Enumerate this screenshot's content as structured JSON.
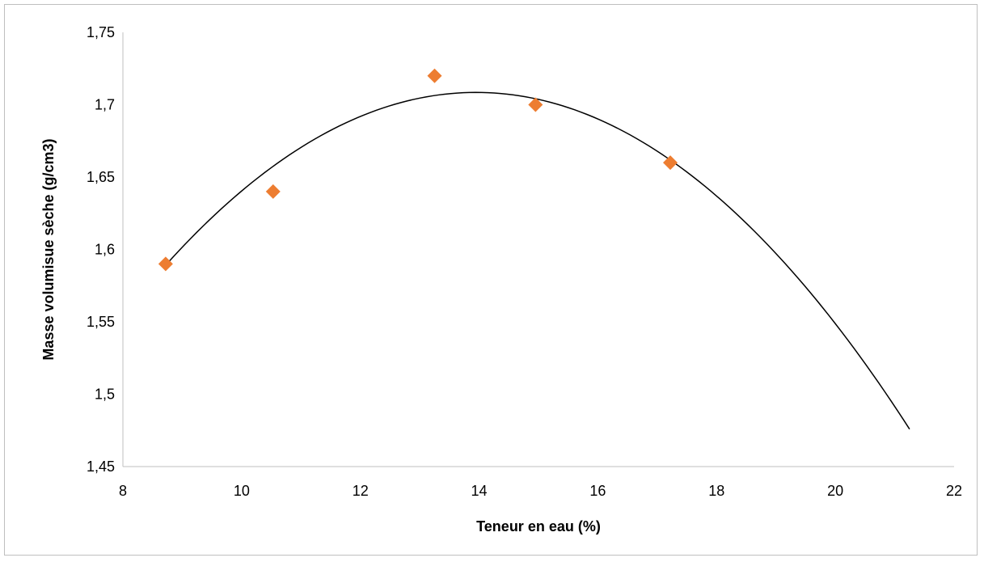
{
  "chart_data": {
    "type": "scatter",
    "title": "",
    "xlabel": "Teneur en eau (%)",
    "ylabel": "Masse volumisue sèche (g/cm3)",
    "xlim": [
      8,
      22
    ],
    "ylim": [
      1.45,
      1.75
    ],
    "x_ticks": [
      8,
      10,
      12,
      14,
      16,
      18,
      20,
      22
    ],
    "y_ticks": [
      1.45,
      1.5,
      1.55,
      1.6,
      1.65,
      1.7,
      1.75
    ],
    "x_tick_labels": [
      "8",
      "10",
      "12",
      "14",
      "16",
      "18",
      "20",
      "22"
    ],
    "y_tick_labels": [
      "1,45",
      "1,5",
      "1,55",
      "1,6",
      "1,65",
      "1,7",
      "1,75"
    ],
    "grid": false,
    "legend": "none",
    "series": [
      {
        "marker": "diamond",
        "color": "#ED7D31",
        "points": [
          {
            "x": 8.72,
            "y": 1.59
          },
          {
            "x": 10.53,
            "y": 1.64
          },
          {
            "x": 13.25,
            "y": 1.72
          },
          {
            "x": 14.95,
            "y": 1.7
          },
          {
            "x": 17.22,
            "y": 1.66
          }
        ]
      }
    ],
    "trendline": {
      "type": "polynomial",
      "order": 2,
      "color": "#000000",
      "x_range": [
        8.72,
        21.25
      ],
      "vertex": {
        "x": 13.95,
        "y": 1.7085
      },
      "curvature": -0.004365
    }
  }
}
